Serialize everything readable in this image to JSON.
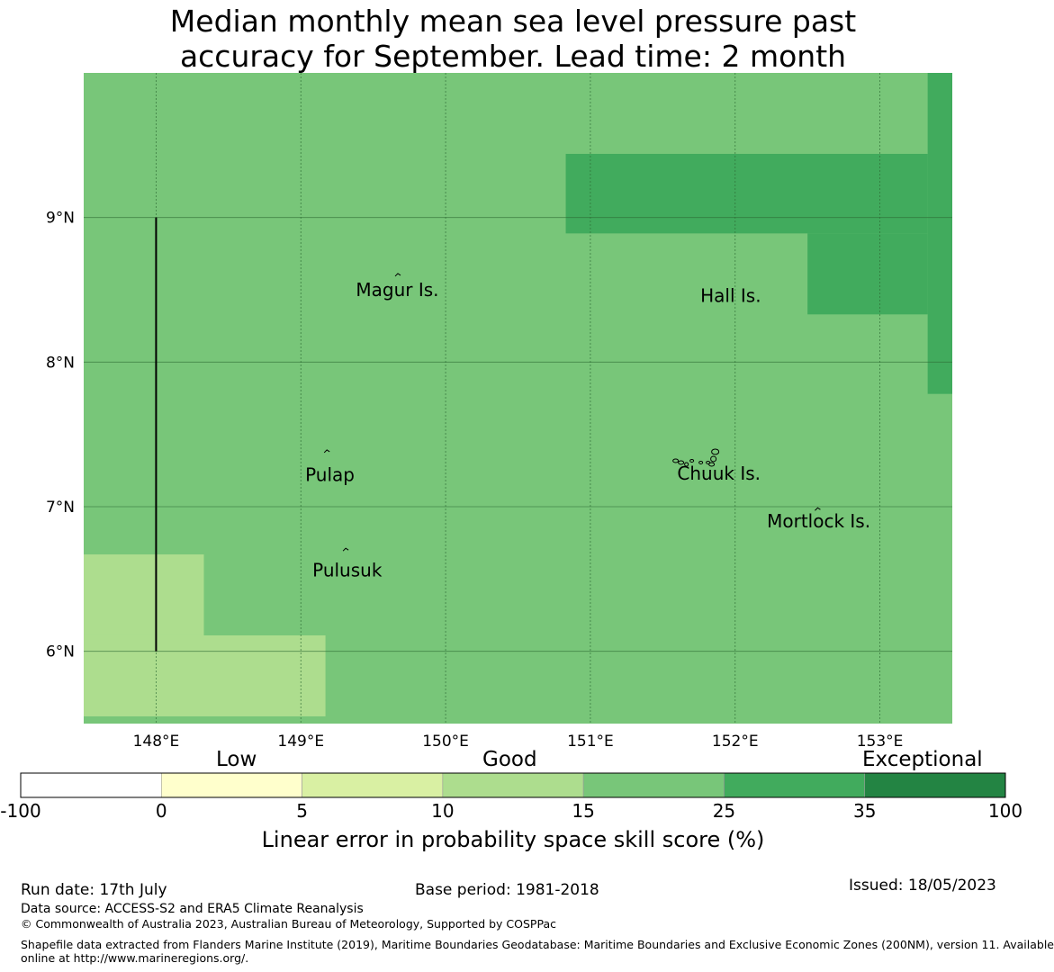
{
  "title": {
    "line1": "Median monthly mean sea level pressure past",
    "line2": "accuracy for September. Lead time: 2 month"
  },
  "map": {
    "lon_range": [
      147.5,
      153.5
    ],
    "lat_range": [
      5.5,
      10.0
    ],
    "lon_ticks": [
      {
        "value": 148,
        "label": "148°E"
      },
      {
        "value": 149,
        "label": "149°E"
      },
      {
        "value": 150,
        "label": "150°E"
      },
      {
        "value": 151,
        "label": "151°E"
      },
      {
        "value": 152,
        "label": "152°E"
      },
      {
        "value": 153,
        "label": "153°E"
      }
    ],
    "lat_ticks": [
      {
        "value": 9,
        "label": "9°N"
      },
      {
        "value": 8,
        "label": "8°N"
      },
      {
        "value": 7,
        "label": "7°N"
      },
      {
        "value": 6,
        "label": "6°N"
      }
    ],
    "grid": true,
    "base_color": "#78c679",
    "skill_regions": [
      {
        "lon": [
          150.83,
          153.33
        ],
        "lat": [
          8.89,
          9.44
        ],
        "color": "#41ab5d",
        "category": "25-35"
      },
      {
        "lon": [
          152.5,
          153.33
        ],
        "lat": [
          8.33,
          8.89
        ],
        "color": "#41ab5d",
        "category": "25-35"
      },
      {
        "lon": [
          153.33,
          153.5
        ],
        "lat": [
          7.78,
          10.0
        ],
        "color": "#41ab5d",
        "category": "25-35"
      },
      {
        "lon": [
          147.5,
          148.33
        ],
        "lat": [
          6.11,
          6.67
        ],
        "color": "#addd8e",
        "category": "10-15"
      },
      {
        "lon": [
          147.5,
          149.17
        ],
        "lat": [
          5.55,
          6.11
        ],
        "color": "#addd8e",
        "category": "10-15"
      }
    ],
    "boundary_line": {
      "lon": 148.0,
      "lat": [
        6.0,
        9.0
      ]
    },
    "places": [
      {
        "name": "Magur Is.",
        "lon": 149.38,
        "lat": 8.5
      },
      {
        "name": "Hall Is.",
        "lon": 151.76,
        "lat": 8.46
      },
      {
        "name": "Pulap",
        "lon": 149.03,
        "lat": 7.22
      },
      {
        "name": "Chuuk Is.",
        "lon": 151.6,
        "lat": 7.23
      },
      {
        "name": "Mortlock Is.",
        "lon": 152.22,
        "lat": 6.9
      },
      {
        "name": "Pulusuk",
        "lon": 149.08,
        "lat": 6.56
      }
    ],
    "islands": [
      {
        "name": "Magur Is.",
        "lon": 149.67,
        "lat": 8.6
      },
      {
        "name": "Pulap",
        "lon": 149.18,
        "lat": 7.38
      },
      {
        "name": "Pulusuk",
        "lon": 149.31,
        "lat": 6.7
      },
      {
        "name": "Chuuk Is.",
        "lon": 151.85,
        "lat": 7.38
      },
      {
        "name": "Mortlock Is.",
        "lon": 152.57,
        "lat": 6.98
      }
    ]
  },
  "colorbar": {
    "categories": [
      {
        "label": "Low"
      },
      {
        "label": "Good"
      },
      {
        "label": "Exceptional"
      }
    ],
    "bins": [
      {
        "from": -100,
        "to": 0,
        "color": "#ffffff"
      },
      {
        "from": 0,
        "to": 5,
        "color": "#ffffcc"
      },
      {
        "from": 5,
        "to": 10,
        "color": "#d9f0a3"
      },
      {
        "from": 10,
        "to": 15,
        "color": "#addd8e"
      },
      {
        "from": 15,
        "to": 25,
        "color": "#78c679"
      },
      {
        "from": 25,
        "to": 35,
        "color": "#41ab5d"
      },
      {
        "from": 35,
        "to": 100,
        "color": "#238443"
      }
    ],
    "tick_labels": [
      "-100",
      "0",
      "5",
      "10",
      "15",
      "25",
      "35",
      "100"
    ],
    "label": "Linear error in probability space skill score (%)"
  },
  "footer": {
    "run_date": "Run date: 17th July",
    "base_period": "Base period: 1981-2018",
    "issued": "Issued: 18/05/2023",
    "data_source": "Data source: ACCESS-S2 and ERA5 Climate Reanalysis",
    "copyright": "© Commonwealth of Australia 2023, Australian Bureau of Meteorology, Supported by COSPPac",
    "shapefile_line1": "Shapefile data extracted from Flanders Marine Institute (2019), Maritime Boundaries Geodatabase: Maritime Boundaries and Exclusive Economic Zones (200NM), version 11. Available",
    "shapefile_line2": "online at http://www.marineregions.org/."
  }
}
